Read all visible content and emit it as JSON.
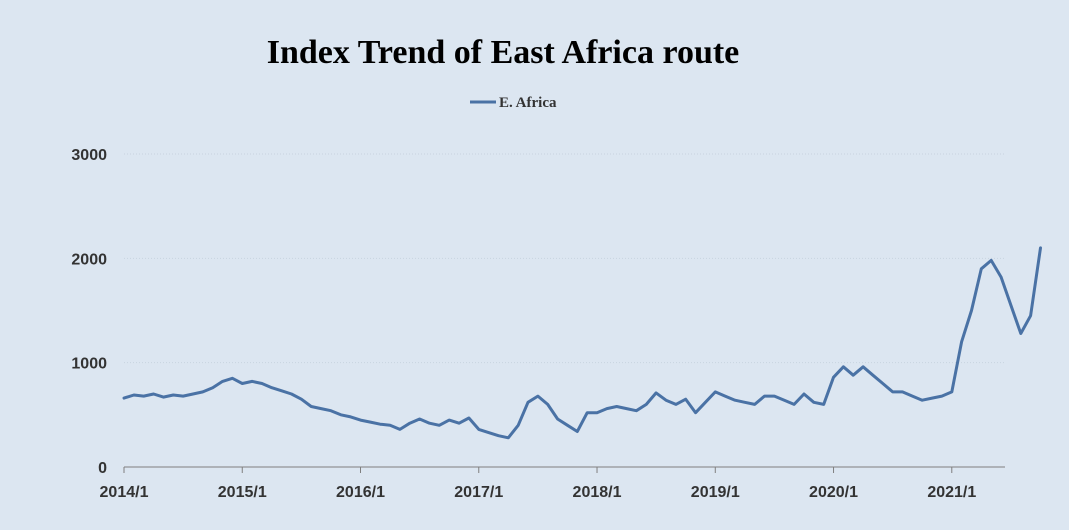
{
  "chart_data": {
    "type": "line",
    "title": "Index Trend of East Africa route",
    "xlabel": "",
    "ylabel": "",
    "ylim": [
      0,
      3000
    ],
    "y_ticks": [
      0,
      1000,
      2000,
      3000
    ],
    "x_ticks": [
      "2014/1",
      "2015/1",
      "2016/1",
      "2017/1",
      "2018/1",
      "2019/1",
      "2020/1",
      "2021/1"
    ],
    "grid": true,
    "legend": "top-center",
    "series": [
      {
        "name": "E. Africa",
        "color": "#4a72a5",
        "points": [
          [
            "2014/1",
            660
          ],
          [
            "2014/2",
            690
          ],
          [
            "2014/3",
            680
          ],
          [
            "2014/4",
            700
          ],
          [
            "2014/5",
            670
          ],
          [
            "2014/6",
            690
          ],
          [
            "2014/7",
            680
          ],
          [
            "2014/8",
            700
          ],
          [
            "2014/9",
            720
          ],
          [
            "2014/10",
            760
          ],
          [
            "2014/11",
            820
          ],
          [
            "2014/12",
            850
          ],
          [
            "2015/1",
            800
          ],
          [
            "2015/2",
            820
          ],
          [
            "2015/3",
            800
          ],
          [
            "2015/4",
            760
          ],
          [
            "2015/5",
            730
          ],
          [
            "2015/6",
            700
          ],
          [
            "2015/7",
            650
          ],
          [
            "2015/8",
            580
          ],
          [
            "2015/9",
            560
          ],
          [
            "2015/10",
            540
          ],
          [
            "2015/11",
            500
          ],
          [
            "2015/12",
            480
          ],
          [
            "2016/1",
            450
          ],
          [
            "2016/2",
            430
          ],
          [
            "2016/3",
            410
          ],
          [
            "2016/4",
            400
          ],
          [
            "2016/5",
            360
          ],
          [
            "2016/6",
            420
          ],
          [
            "2016/7",
            460
          ],
          [
            "2016/8",
            420
          ],
          [
            "2016/9",
            400
          ],
          [
            "2016/10",
            450
          ],
          [
            "2016/11",
            420
          ],
          [
            "2016/12",
            470
          ],
          [
            "2017/1",
            360
          ],
          [
            "2017/2",
            330
          ],
          [
            "2017/3",
            300
          ],
          [
            "2017/4",
            280
          ],
          [
            "2017/5",
            400
          ],
          [
            "2017/6",
            620
          ],
          [
            "2017/7",
            680
          ],
          [
            "2017/8",
            600
          ],
          [
            "2017/9",
            460
          ],
          [
            "2017/10",
            400
          ],
          [
            "2017/11",
            340
          ],
          [
            "2017/12",
            520
          ],
          [
            "2018/1",
            520
          ],
          [
            "2018/2",
            560
          ],
          [
            "2018/3",
            580
          ],
          [
            "2018/4",
            560
          ],
          [
            "2018/5",
            540
          ],
          [
            "2018/6",
            600
          ],
          [
            "2018/7",
            710
          ],
          [
            "2018/8",
            640
          ],
          [
            "2018/9",
            600
          ],
          [
            "2018/10",
            650
          ],
          [
            "2018/11",
            520
          ],
          [
            "2018/12",
            620
          ],
          [
            "2019/1",
            720
          ],
          [
            "2019/2",
            680
          ],
          [
            "2019/3",
            640
          ],
          [
            "2019/4",
            620
          ],
          [
            "2019/5",
            600
          ],
          [
            "2019/6",
            680
          ],
          [
            "2019/7",
            680
          ],
          [
            "2019/8",
            640
          ],
          [
            "2019/9",
            600
          ],
          [
            "2019/10",
            700
          ],
          [
            "2019/11",
            620
          ],
          [
            "2019/12",
            600
          ],
          [
            "2020/1",
            860
          ],
          [
            "2020/2",
            960
          ],
          [
            "2020/3",
            880
          ],
          [
            "2020/4",
            960
          ],
          [
            "2020/5",
            880
          ],
          [
            "2020/6",
            800
          ],
          [
            "2020/7",
            720
          ],
          [
            "2020/8",
            720
          ],
          [
            "2020/9",
            680
          ],
          [
            "2020/10",
            640
          ],
          [
            "2020/11",
            660
          ],
          [
            "2020/12",
            680
          ],
          [
            "2021/1",
            720
          ],
          [
            "2021/2",
            1200
          ],
          [
            "2021/3",
            1500
          ],
          [
            "2021/4",
            1900
          ],
          [
            "2021/5",
            1980
          ],
          [
            "2021/6",
            1820
          ],
          [
            "2021/7",
            1550
          ],
          [
            "2021/8",
            1280
          ],
          [
            "2021/9",
            1450
          ],
          [
            "2021/10",
            2100
          ]
        ]
      }
    ]
  }
}
